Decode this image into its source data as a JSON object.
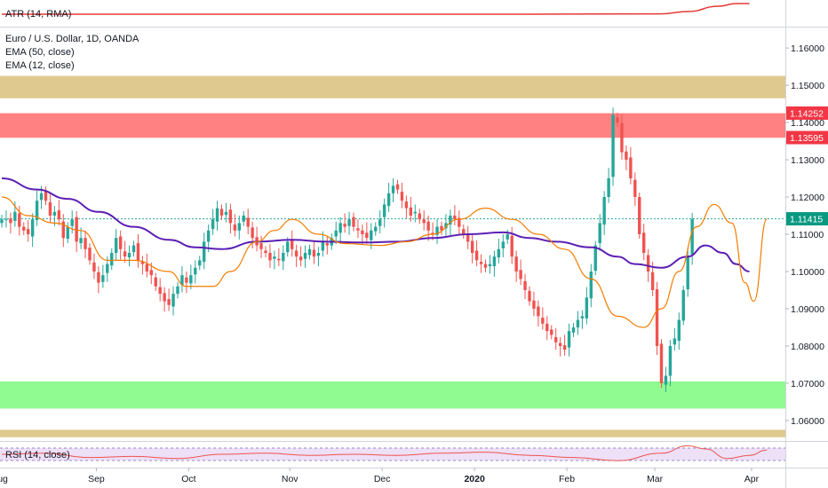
{
  "chart_data": {
    "type": "candlestick",
    "instrument": "Euro / U.S. Dollar, 1D, OANDA",
    "ylim": [
      1.0545,
      1.1655
    ],
    "y_ticks": [
      "1.16000",
      "1.15000",
      "1.14000",
      "1.13000",
      "1.12000",
      "1.11000",
      "1.10000",
      "1.09000",
      "1.08000",
      "1.07000",
      "1.06000"
    ],
    "x_ticks": [
      {
        "label": "Aug",
        "idx": -0.5
      },
      {
        "label": "Sep",
        "idx": 21.5
      },
      {
        "label": "Oct",
        "idx": 42.5
      },
      {
        "label": "Nov",
        "idx": 65.5
      },
      {
        "label": "Dec",
        "idx": 86.5
      },
      {
        "label": "2020",
        "idx": 107.5,
        "bold": true
      },
      {
        "label": "Feb",
        "idx": 128.5
      },
      {
        "label": "Mar",
        "idx": 148.5
      },
      {
        "label": "Apr",
        "idx": 170.5
      }
    ],
    "legend": [
      "EMA (50, close)",
      "EMA (12, close)"
    ],
    "price_badges": [
      {
        "label": "1.14252",
        "value": 1.14252,
        "color": "#f23645"
      },
      {
        "label": "1.13595",
        "value": 1.13595,
        "color": "#f23645"
      },
      {
        "label": "1.11415",
        "value": 1.11415,
        "color": "#089981"
      }
    ],
    "zones": [
      {
        "from": 1.1465,
        "to": 1.1525,
        "color": "#d9c07a"
      },
      {
        "from": 1.1359,
        "to": 1.1425,
        "color": "#ff6b6b"
      },
      {
        "from": 1.0632,
        "to": 1.0705,
        "color": "#7dfa7d"
      },
      {
        "from": 1.0555,
        "to": 1.0575,
        "color": "#d9c07a"
      }
    ],
    "close_line": 1.11415,
    "closes": [
      1.114,
      1.114,
      1.113,
      1.116,
      1.112,
      1.111,
      1.11,
      1.114,
      1.119,
      1.121,
      1.119,
      1.115,
      1.116,
      1.114,
      1.109,
      1.112,
      1.114,
      1.108,
      1.109,
      1.106,
      1.103,
      1.1,
      1.097,
      1.099,
      1.102,
      1.105,
      1.109,
      1.106,
      1.104,
      1.105,
      1.107,
      1.103,
      1.102,
      1.1,
      1.099,
      1.096,
      1.094,
      1.092,
      1.091,
      1.094,
      1.096,
      1.099,
      1.097,
      1.099,
      1.101,
      1.103,
      1.108,
      1.111,
      1.114,
      1.117,
      1.115,
      1.116,
      1.113,
      1.111,
      1.113,
      1.115,
      1.112,
      1.109,
      1.107,
      1.106,
      1.105,
      1.103,
      1.104,
      1.103,
      1.105,
      1.108,
      1.106,
      1.104,
      1.103,
      1.105,
      1.106,
      1.104,
      1.105,
      1.108,
      1.107,
      1.109,
      1.111,
      1.113,
      1.112,
      1.114,
      1.112,
      1.111,
      1.11,
      1.109,
      1.111,
      1.112,
      1.114,
      1.118,
      1.121,
      1.123,
      1.122,
      1.119,
      1.117,
      1.115,
      1.116,
      1.114,
      1.113,
      1.111,
      1.11,
      1.112,
      1.111,
      1.113,
      1.115,
      1.114,
      1.112,
      1.11,
      1.108,
      1.105,
      1.103,
      1.102,
      1.101,
      1.102,
      1.104,
      1.106,
      1.108,
      1.11,
      1.104,
      1.1,
      1.098,
      1.095,
      1.092,
      1.09,
      1.088,
      1.086,
      1.084,
      1.083,
      1.081,
      1.08,
      1.079,
      1.084,
      1.085,
      1.087,
      1.088,
      1.093,
      1.1,
      1.107,
      1.113,
      1.12,
      1.125,
      1.142,
      1.14,
      1.132,
      1.13,
      1.125,
      1.12,
      1.11,
      1.105,
      1.1,
      1.095,
      1.08,
      1.07,
      1.072,
      1.08,
      1.082,
      1.087,
      1.095,
      1.104,
      1.1141
    ],
    "ema50_points": [
      [
        0,
        1.125
      ],
      [
        8,
        1.122
      ],
      [
        15,
        1.1195
      ],
      [
        22,
        1.116
      ],
      [
        30,
        1.112
      ],
      [
        38,
        1.1085
      ],
      [
        44,
        1.1065
      ],
      [
        50,
        1.106
      ],
      [
        58,
        1.108
      ],
      [
        66,
        1.1085
      ],
      [
        74,
        1.108
      ],
      [
        82,
        1.1078
      ],
      [
        90,
        1.108
      ],
      [
        98,
        1.109
      ],
      [
        106,
        1.11
      ],
      [
        114,
        1.1105
      ],
      [
        120,
        1.109
      ],
      [
        126,
        1.108
      ],
      [
        134,
        1.1065
      ],
      [
        140,
        1.104
      ],
      [
        144,
        1.102
      ],
      [
        150,
        1.101
      ],
      [
        156,
        1.104
      ],
      [
        160,
        1.107
      ],
      [
        164,
        1.105
      ],
      [
        167,
        1.102
      ],
      [
        170,
        1.1
      ]
    ],
    "ema12_points": [
      [
        0,
        1.12
      ],
      [
        6,
        1.115
      ],
      [
        12,
        1.113
      ],
      [
        18,
        1.111
      ],
      [
        24,
        1.103
      ],
      [
        30,
        1.103
      ],
      [
        38,
        1.1
      ],
      [
        42,
        1.096
      ],
      [
        48,
        1.096
      ],
      [
        52,
        1.1
      ],
      [
        58,
        1.108
      ],
      [
        62,
        1.111
      ],
      [
        66,
        1.114
      ],
      [
        72,
        1.11
      ],
      [
        78,
        1.1075
      ],
      [
        86,
        1.107
      ],
      [
        92,
        1.108
      ],
      [
        98,
        1.11
      ],
      [
        104,
        1.114
      ],
      [
        110,
        1.117
      ],
      [
        116,
        1.114
      ],
      [
        122,
        1.11
      ],
      [
        128,
        1.106
      ],
      [
        134,
        1.098
      ],
      [
        140,
        1.088
      ],
      [
        146,
        1.085
      ],
      [
        150,
        1.09
      ],
      [
        154,
        1.1
      ],
      [
        158,
        1.112
      ],
      [
        162,
        1.118
      ],
      [
        166,
        1.113
      ],
      [
        169,
        1.097
      ],
      [
        171,
        1.092
      ],
      [
        174,
        1.1141
      ]
    ],
    "atr": {
      "label": "ATR (14, RMA)",
      "points": [
        [
          0,
          0.4
        ],
        [
          60,
          0.4
        ],
        [
          120,
          0.4
        ],
        [
          150,
          0.42
        ],
        [
          156,
          0.55
        ],
        [
          163,
          0.85
        ],
        [
          167,
          1.0
        ],
        [
          170,
          1.0
        ]
      ]
    },
    "rsi": {
      "label": "RSI (14, close)",
      "points": [
        [
          0,
          0.5
        ],
        [
          10,
          0.55
        ],
        [
          20,
          0.35
        ],
        [
          30,
          0.4
        ],
        [
          40,
          0.3
        ],
        [
          50,
          0.5
        ],
        [
          60,
          0.55
        ],
        [
          70,
          0.45
        ],
        [
          80,
          0.5
        ],
        [
          90,
          0.45
        ],
        [
          100,
          0.55
        ],
        [
          110,
          0.6
        ],
        [
          120,
          0.45
        ],
        [
          130,
          0.35
        ],
        [
          140,
          0.2
        ],
        [
          150,
          0.55
        ],
        [
          156,
          0.9
        ],
        [
          160,
          0.75
        ],
        [
          165,
          0.3
        ],
        [
          170,
          0.45
        ],
        [
          174,
          0.7
        ]
      ]
    }
  },
  "panes": {
    "atr_label": "ATR (14, RMA)",
    "main_title": "Euro / U.S. Dollar, 1D, OANDA",
    "ema50_label": "EMA (50, close)",
    "ema12_label": "EMA (12, close)",
    "rsi_label": "RSI (14, close)"
  },
  "colors": {
    "up": "#26a69a",
    "down": "#ef5350",
    "ema50": "#5b1fb4",
    "ema12": "#f57c00",
    "atr": "#e53935",
    "rsi": "#ef5350",
    "rsi_band": "#ede0f7",
    "close_line": "#26a69a"
  }
}
